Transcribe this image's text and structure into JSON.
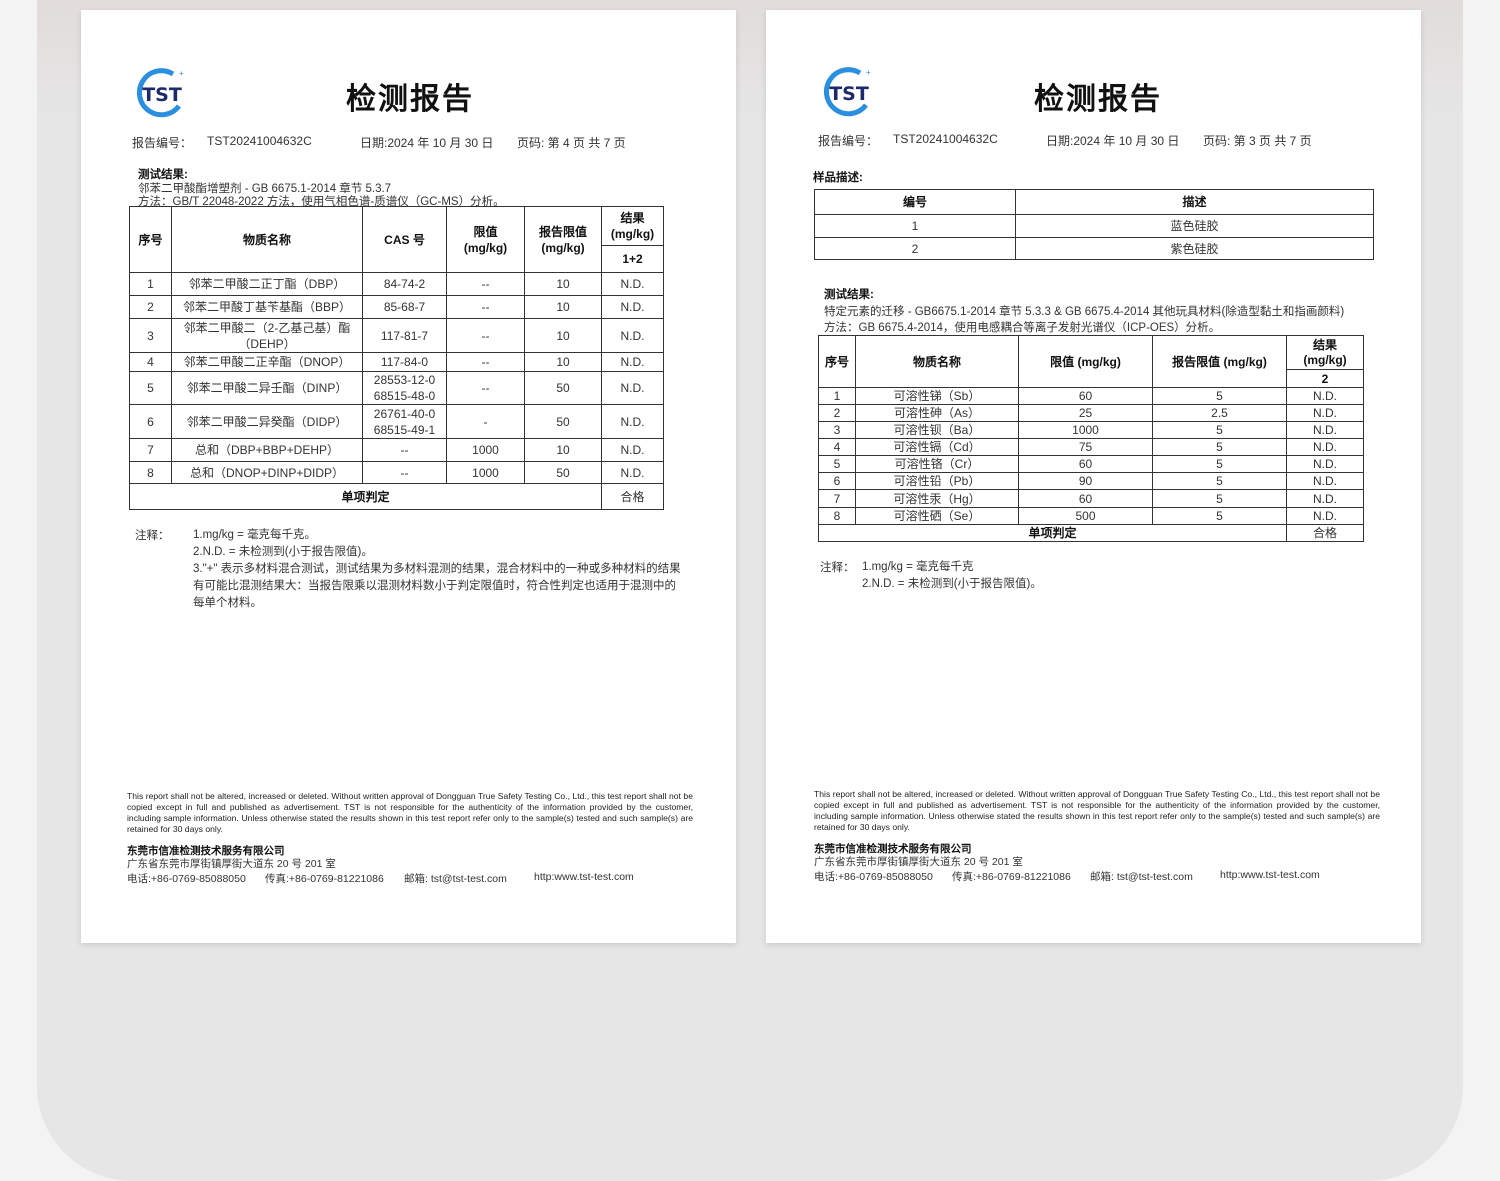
{
  "logo_text": "TST",
  "colors": {
    "logo_blue": "#1a3f9a",
    "logo_ring": "#2b8fe0",
    "logo_navy": "#1c2a6b"
  },
  "left": {
    "title": "检测报告",
    "report_no_label": "报告编号：",
    "report_no": "TST20241004632C",
    "date": "日期:2024 年 10 月 30 日",
    "page": "页码: 第 4 页 共 7 页",
    "results_heading": "测试结果:",
    "test_line": "邻苯二甲酸酯增塑剂 - GB 6675.1-2014 章节 5.3.7",
    "method_line": "方法：GB/T 22048-2022 方法，使用气相色谱-质谱仪（GC-MS）分析。",
    "table": {
      "headers": [
        "序号",
        "物质名称",
        "CAS 号",
        "限值\n(mg/kg)",
        "报告限值\n(mg/kg)",
        "结果\n(mg/kg)",
        "1+2"
      ],
      "rows": [
        [
          "1",
          "邻苯二甲酸二正丁酯（DBP）",
          "84-74-2",
          "--",
          "10",
          "N.D."
        ],
        [
          "2",
          "邻苯二甲酸丁基苄基酯（BBP）",
          "85-68-7",
          "--",
          "10",
          "N.D."
        ],
        [
          "3",
          "邻苯二甲酸二（2-乙基己基）酯（DEHP）",
          "117-81-7",
          "--",
          "10",
          "N.D."
        ],
        [
          "4",
          "邻苯二甲酸二正辛酯（DNOP）",
          "117-84-0",
          "--",
          "10",
          "N.D."
        ],
        [
          "5",
          "邻苯二甲酸二异壬酯（DINP）",
          "28553-12-0\n68515-48-0",
          "--",
          "50",
          "N.D."
        ],
        [
          "6",
          "邻苯二甲酸二异癸酯（DIDP）",
          "26761-40-0\n68515-49-1",
          "-",
          "50",
          "N.D."
        ],
        [
          "7",
          "总和（DBP+BBP+DEHP）",
          "--",
          "1000",
          "10",
          "N.D."
        ],
        [
          "8",
          "总和（DNOP+DINP+DIDP）",
          "--",
          "1000",
          "50",
          "N.D."
        ]
      ],
      "verdict_label": "单项判定",
      "verdict": "合格"
    },
    "notes_label": "注释：",
    "notes": [
      "1.mg/kg = 毫克每千克。",
      "2.N.D. = 未检测到(小于报告限值)。",
      "3.\"+\" 表示多材料混合测试，测试结果为多材料混测的结果，混合材料中的一种或多种材料的结果",
      "有可能比混测结果大：当报告限乘以混测材料数小于判定限值时，符合性判定也适用于混测中的",
      "每单个材料。"
    ]
  },
  "right": {
    "title": "检测报告",
    "report_no_label": "报告编号：",
    "report_no": "TST20241004632C",
    "date": "日期:2024 年 10 月 30 日",
    "page": "页码: 第 3 页 共 7 页",
    "sample_heading": "样品描述:",
    "sample_table": {
      "headers": [
        "编号",
        "描述"
      ],
      "rows": [
        [
          "1",
          "蓝色硅胶"
        ],
        [
          "2",
          "紫色硅胶"
        ]
      ]
    },
    "results_heading": "测试结果:",
    "test_line": "特定元素的迁移 - GB6675.1-2014 章节 5.3.3 & GB 6675.4-2014 其他玩具材料(除造型黏土和指画颜料)",
    "method_line": "方法：GB 6675.4-2014，使用电感耦合等离子发射光谱仪（ICP-OES）分析。",
    "table": {
      "headers": [
        "序号",
        "物质名称",
        "限值 (mg/kg)",
        "报告限值 (mg/kg)",
        "结果\n(mg/kg)",
        "2"
      ],
      "rows": [
        [
          "1",
          "可溶性锑（Sb）",
          "60",
          "5",
          "N.D."
        ],
        [
          "2",
          "可溶性砷（As）",
          "25",
          "2.5",
          "N.D."
        ],
        [
          "3",
          "可溶性钡（Ba）",
          "1000",
          "5",
          "N.D."
        ],
        [
          "4",
          "可溶性镉（Cd）",
          "75",
          "5",
          "N.D."
        ],
        [
          "5",
          "可溶性铬（Cr）",
          "60",
          "5",
          "N.D."
        ],
        [
          "6",
          "可溶性铅（Pb）",
          "90",
          "5",
          "N.D."
        ],
        [
          "7",
          "可溶性汞（Hg）",
          "60",
          "5",
          "N.D."
        ],
        [
          "8",
          "可溶性硒（Se）",
          "500",
          "5",
          "N.D."
        ]
      ],
      "verdict_label": "单项判定",
      "verdict": "合格"
    },
    "notes_label": "注释：",
    "notes": [
      "1.mg/kg = 毫克每千克",
      "2.N.D. = 未检测到(小于报告限值)。"
    ]
  },
  "footer": {
    "disclaimer": "This report shall not be altered, increased or deleted. Without written approval of Dongguan True Safety Testing Co., Ltd., this test report shall not be copied except in full and published as advertisement. TST is not responsible for the authenticity of the information provided by the customer, including sample information. Unless otherwise stated the results shown in this test report refer only to the sample(s) tested and such sample(s) are retained for 30 days only.",
    "company": "东莞市信准检测技术服务有限公司",
    "address": "广东省东莞市厚街镇厚街大道东 20 号 201 室",
    "phone": "电话:+86-0769-85088050",
    "fax": "传真:+86-0769-81221086",
    "email": "邮箱: tst@tst-test.com",
    "website": "http:www.tst-test.com"
  }
}
